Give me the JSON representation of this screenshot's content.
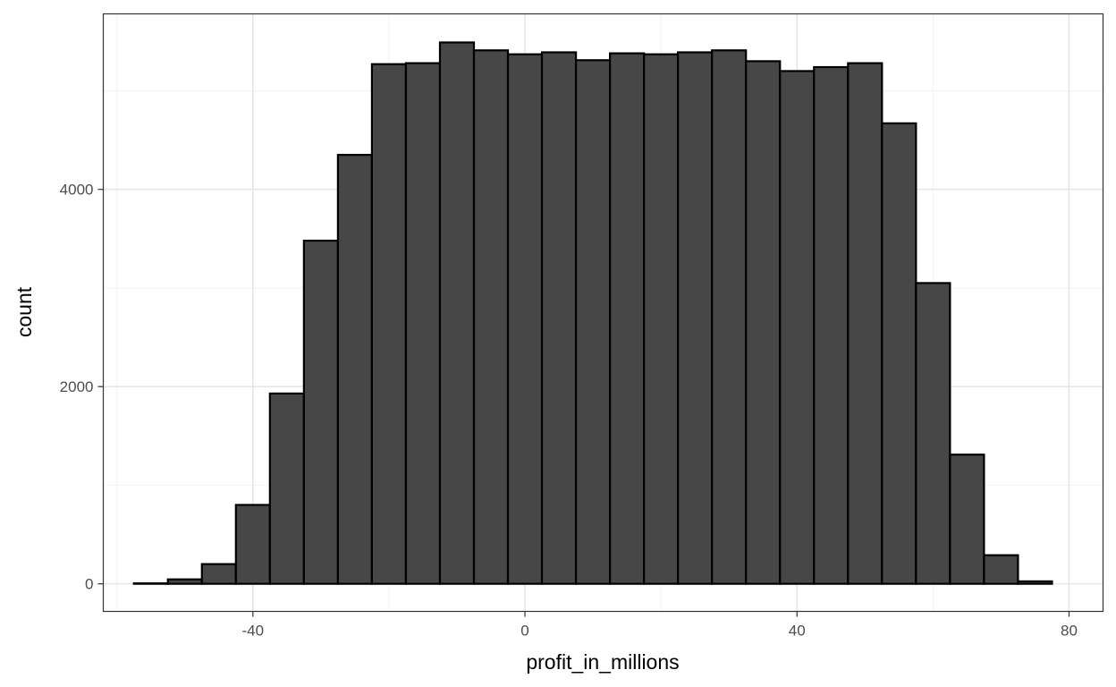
{
  "chart_data": {
    "type": "bar",
    "subtype": "histogram",
    "title": "",
    "xlabel": "profit_in_millions",
    "ylabel": "count",
    "xlim": [
      -62,
      85
    ],
    "ylim": [
      -280,
      5780
    ],
    "x_ticks": [
      -40,
      0,
      40,
      80
    ],
    "y_ticks": [
      0,
      2000,
      4000
    ],
    "bin_width": 5,
    "bin_centers": [
      -55,
      -50,
      -45,
      -40,
      -35,
      -30,
      -25,
      -20,
      -15,
      -10,
      -5,
      0,
      5,
      10,
      15,
      20,
      25,
      30,
      35,
      40,
      45,
      50,
      55,
      60,
      65,
      70,
      75
    ],
    "values": [
      5,
      45,
      200,
      800,
      1930,
      3480,
      4350,
      5270,
      5280,
      5490,
      5410,
      5370,
      5390,
      5310,
      5380,
      5370,
      5390,
      5410,
      5300,
      5200,
      5240,
      5280,
      4670,
      3050,
      1310,
      290,
      25
    ],
    "grid": true,
    "legend": "none",
    "colors": {
      "bar_fill": "#474747",
      "bar_stroke": "#000000",
      "grid_major": "#e6e6e6",
      "grid_minor": "#f2f2f2",
      "panel_border": "#333333"
    }
  }
}
